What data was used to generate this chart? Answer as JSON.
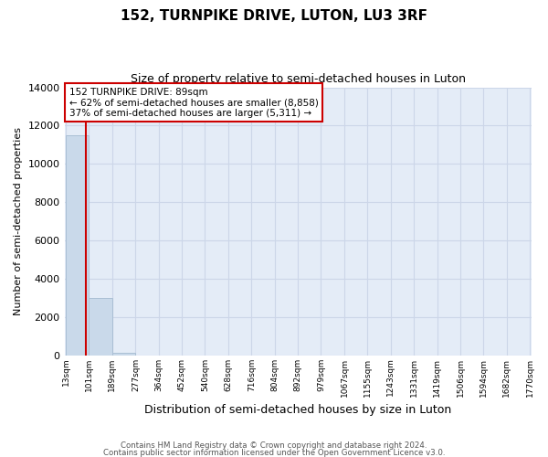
{
  "title": "152, TURNPIKE DRIVE, LUTON, LU3 3RF",
  "subtitle": "Size of property relative to semi-detached houses in Luton",
  "xlabel": "Distribution of semi-detached houses by size in Luton",
  "ylabel": "Number of semi-detached properties",
  "bin_edges": [
    13,
    101,
    189,
    277,
    364,
    452,
    540,
    628,
    716,
    804,
    892,
    979,
    1067,
    1155,
    1243,
    1331,
    1419,
    1506,
    1594,
    1682,
    1770
  ],
  "bar_heights": [
    11500,
    3000,
    150,
    0,
    0,
    0,
    0,
    0,
    0,
    0,
    0,
    0,
    0,
    0,
    0,
    0,
    0,
    0,
    0,
    0
  ],
  "bar_color": "#c9d9ea",
  "bar_edgecolor": "#aabfd4",
  "property_size": 89,
  "property_label": "152 TURNPIKE DRIVE: 89sqm",
  "pct_smaller": 62,
  "n_smaller": 8858,
  "pct_larger": 37,
  "n_larger": 5311,
  "vline_color": "#cc0000",
  "annotation_box_color": "#cc0000",
  "ylim": [
    0,
    14000
  ],
  "yticks": [
    0,
    2000,
    4000,
    6000,
    8000,
    10000,
    12000,
    14000
  ],
  "grid_color": "#ccd6e8",
  "bg_color": "#e4ecf7",
  "footer_line1": "Contains HM Land Registry data © Crown copyright and database right 2024.",
  "footer_line2": "Contains public sector information licensed under the Open Government Licence v3.0."
}
